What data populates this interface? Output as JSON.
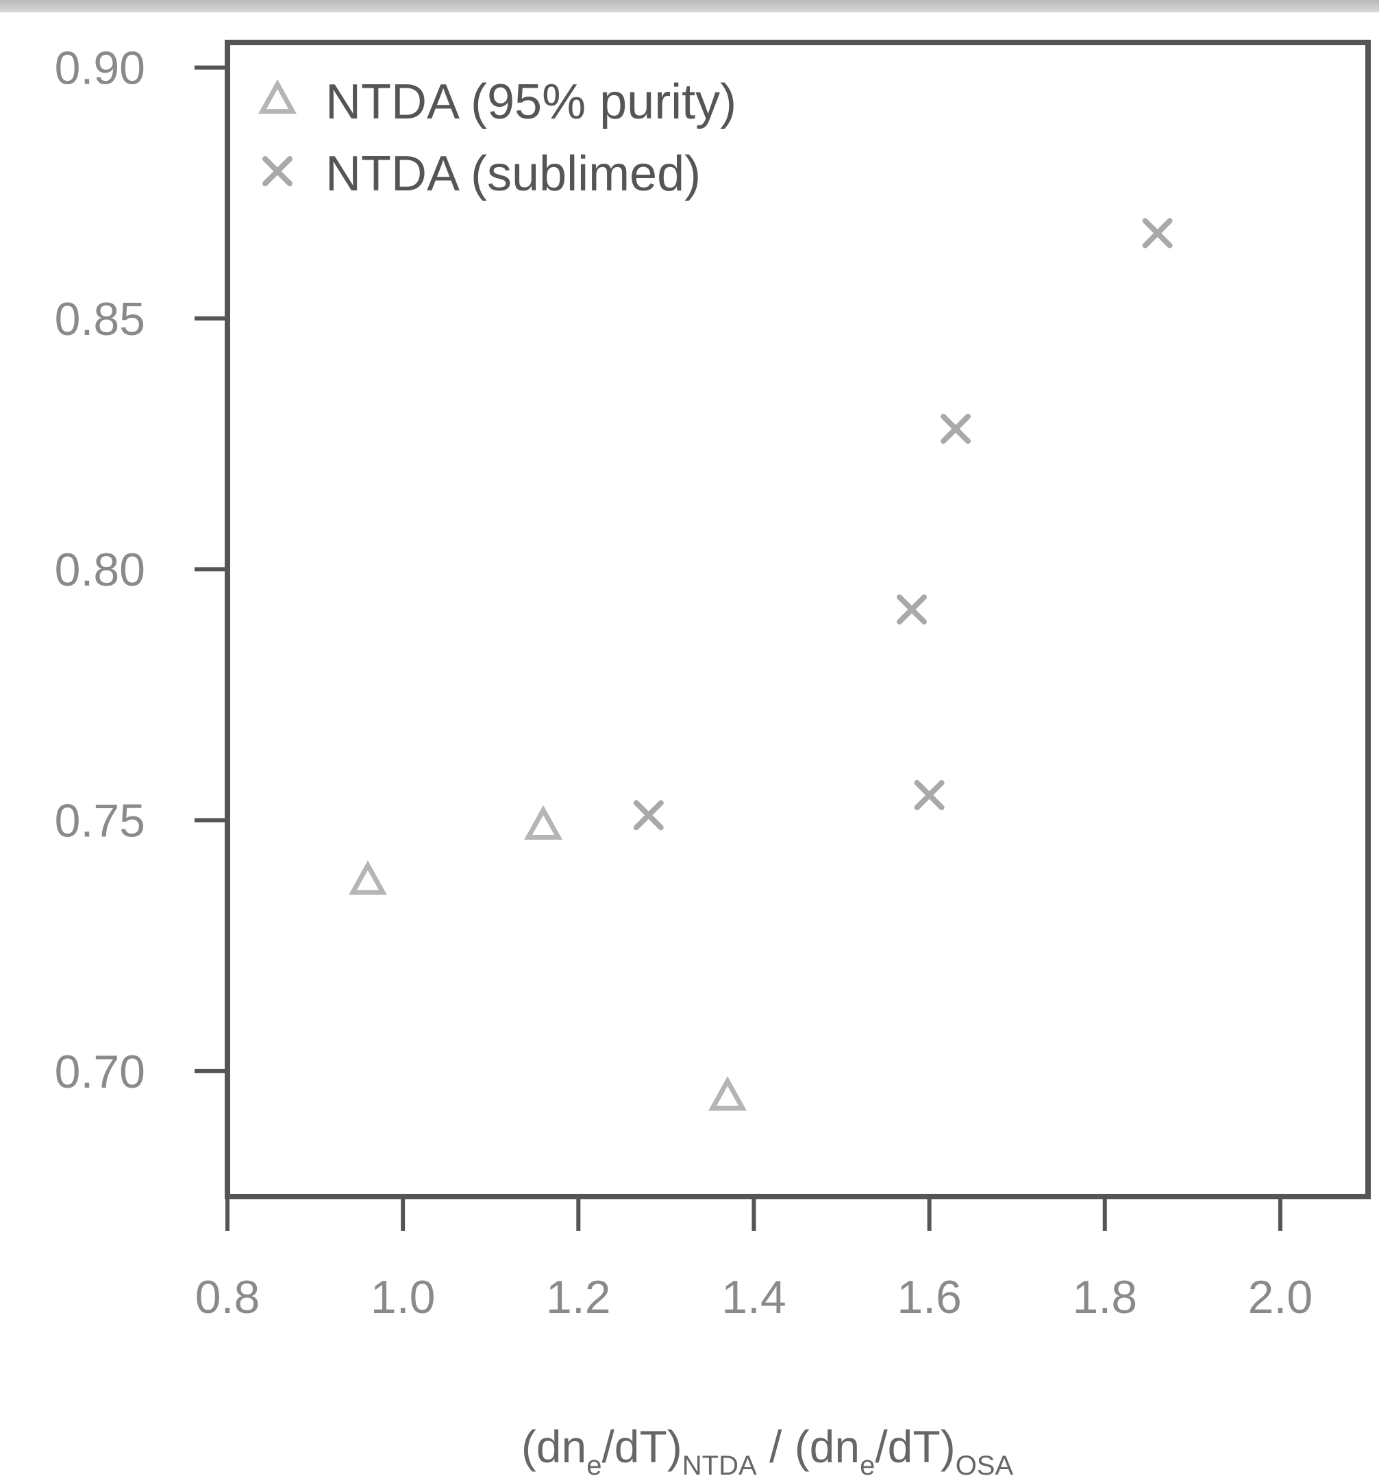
{
  "chart_data": {
    "type": "scatter",
    "title": "",
    "xlabel": {
      "parts": [
        "(dn",
        "e",
        "/dT)",
        "NTDA",
        " / (dn",
        "e",
        "/dT)",
        "OSA"
      ]
    },
    "ylabel": "",
    "xlim": [
      0.8,
      2.1
    ],
    "ylim": [
      0.675,
      0.905
    ],
    "x_ticks": [
      0.8,
      1.0,
      1.2,
      1.4,
      1.6,
      1.8,
      2.0
    ],
    "x_tick_labels": [
      "0.8",
      "1.0",
      "1.2",
      "1.4",
      "1.6",
      "1.8",
      "2.0"
    ],
    "y_ticks": [
      0.7,
      0.75,
      0.8,
      0.85,
      0.9
    ],
    "y_tick_labels": [
      "0.70",
      "0.75",
      "0.80",
      "0.85",
      "0.90"
    ],
    "grid": false,
    "legend_position": "top-left",
    "series": [
      {
        "name": "NTDA (95% purity)",
        "marker": "triangle",
        "color": "#b5b5b5",
        "x": [
          0.96,
          1.16,
          1.37
        ],
        "y": [
          0.738,
          0.749,
          0.695
        ]
      },
      {
        "name": "NTDA (sublimed)",
        "marker": "x",
        "color": "#a9a9a9",
        "x": [
          1.28,
          1.58,
          1.6,
          1.63,
          1.86
        ],
        "y": [
          0.751,
          0.792,
          0.755,
          0.828,
          0.867
        ]
      }
    ]
  }
}
